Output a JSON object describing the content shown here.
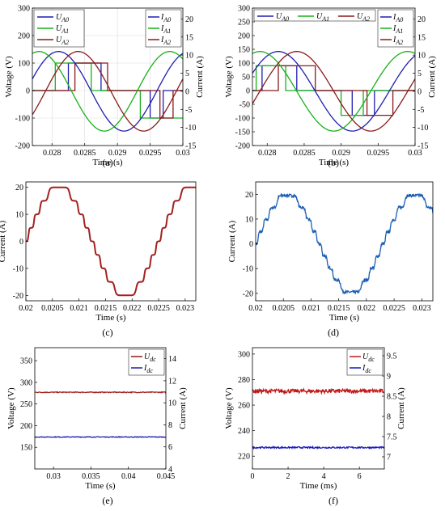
{
  "chart_data": [
    {
      "id": "a",
      "caption": "(a)",
      "type": "line",
      "xlabel": "Time (s)",
      "ylabel": "Voltage (V)",
      "y2label": "Current (A)",
      "xlim": [
        0.0277,
        0.03
      ],
      "ylim": [
        -200,
        300
      ],
      "y2lim": [
        -15,
        23
      ],
      "xticks": [
        "0.028",
        "0.0285",
        "0.029",
        "0.0295",
        "0.03"
      ],
      "yticks": [
        "-200",
        "-100",
        "0",
        "100",
        "200",
        "300"
      ],
      "y2ticks": [
        "-15",
        "-10",
        "-5",
        "0",
        "5",
        "10",
        "15",
        "20"
      ],
      "grid": true,
      "legend": {
        "left": [
          {
            "name": "U_A0",
            "color": "#1f1fb0"
          },
          {
            "name": "U_A1",
            "color": "#18b018"
          },
          {
            "name": "U_A2",
            "color": "#8b1a1a"
          }
        ],
        "right": [
          {
            "name": "I_A0",
            "color": "#1f1fb0"
          },
          {
            "name": "I_A1",
            "color": "#18b018"
          },
          {
            "name": "I_A2",
            "color": "#8b1a1a"
          }
        ]
      },
      "series": [
        {
          "name": "U_A0",
          "axis": "y",
          "kind": "step",
          "color": "#1f1fb0",
          "x": [
            0.0277,
            0.02825,
            0.02825,
            0.02875,
            0.02875,
            0.0295,
            0.0295,
            0.0297,
            0.0297,
            0.03
          ],
          "y": [
            0,
            0,
            100,
            100,
            0,
            0,
            -100,
            -100,
            0,
            0
          ]
        },
        {
          "name": "U_A1",
          "axis": "y",
          "kind": "step",
          "color": "#18b018",
          "x": [
            0.0277,
            0.02805,
            0.02805,
            0.0286,
            0.0286,
            0.02935,
            0.02935,
            0.03
          ],
          "y": [
            0,
            0,
            100,
            100,
            0,
            0,
            -100,
            -100
          ]
        },
        {
          "name": "U_A2",
          "axis": "y",
          "kind": "step",
          "color": "#8b1a1a",
          "x": [
            0.0277,
            0.02835,
            0.02835,
            0.02885,
            0.02885,
            0.02965,
            0.02965,
            0.02985,
            0.02985,
            0.03
          ],
          "y": [
            0,
            0,
            100,
            100,
            0,
            0,
            -100,
            -100,
            0,
            0
          ]
        },
        {
          "name": "I_A0",
          "axis": "y2",
          "kind": "sine",
          "color": "#1f1fb0",
          "amp": 11,
          "period": 0.002,
          "phase": 0.0276
        },
        {
          "name": "I_A1",
          "axis": "y2",
          "kind": "sine",
          "color": "#18b018",
          "amp": 11,
          "period": 0.002,
          "phase": 0.0273
        },
        {
          "name": "I_A2",
          "axis": "y2",
          "kind": "sine",
          "color": "#8b1a1a",
          "amp": 11,
          "period": 0.002,
          "phase": 0.0279
        }
      ]
    },
    {
      "id": "b",
      "caption": "(b)",
      "type": "line",
      "xlabel": "Time (s)",
      "ylabel": "Voltage (V)",
      "y2label": "Current (A)",
      "xlim": [
        0.0278,
        0.03
      ],
      "ylim": [
        -200,
        300
      ],
      "y2lim": [
        -15,
        23
      ],
      "xticks": [
        "0.028",
        "0.0285",
        "0.029",
        "0.0295",
        "0.03"
      ],
      "yticks": [
        "-200",
        "-150",
        "-100",
        "-50",
        "0",
        "50",
        "100",
        "150",
        "200",
        "250",
        "300"
      ],
      "y2ticks": [
        "-15",
        "-10",
        "-5",
        "0",
        "5",
        "10",
        "15",
        "20"
      ],
      "grid": false,
      "legend": {
        "left": [
          {
            "name": "U_A0",
            "color": "#1f1fb0"
          },
          {
            "name": "U_A1",
            "color": "#18b018"
          },
          {
            "name": "U_A2",
            "color": "#8b1a1a"
          }
        ],
        "right": [
          {
            "name": "I_A0",
            "color": "#1f1fb0"
          },
          {
            "name": "I_A1",
            "color": "#18b018"
          },
          {
            "name": "I_A2",
            "color": "#8b1a1a"
          }
        ]
      },
      "series": [
        {
          "name": "U_A0",
          "axis": "y",
          "kind": "step",
          "color": "#1f1fb0",
          "x": [
            0.0278,
            0.02793,
            0.02793,
            0.0284,
            0.0284,
            0.02915,
            0.02915,
            0.02945,
            0.02945,
            0.03
          ],
          "y": [
            0,
            0,
            90,
            90,
            0,
            0,
            -90,
            -90,
            0,
            0
          ]
        },
        {
          "name": "U_A1",
          "axis": "y",
          "kind": "step",
          "color": "#18b018",
          "x": [
            0.0278,
            0.02785,
            0.02785,
            0.02825,
            0.02825,
            0.029,
            0.029,
            0.0293,
            0.0293,
            0.03
          ],
          "y": [
            0,
            0,
            90,
            90,
            0,
            0,
            -90,
            -90,
            0,
            0
          ]
        },
        {
          "name": "U_A2",
          "axis": "y",
          "kind": "step",
          "color": "#8b1a1a",
          "x": [
            0.0278,
            0.02815,
            0.02815,
            0.02865,
            0.02865,
            0.02935,
            0.02935,
            0.0297,
            0.0297,
            0.03
          ],
          "y": [
            0,
            0,
            90,
            90,
            0,
            0,
            -90,
            -90,
            0,
            0
          ]
        },
        {
          "name": "I_A0",
          "axis": "y2",
          "kind": "sine",
          "color": "#1f1fb0",
          "amp": 11,
          "period": 0.002,
          "phase": 0.02765
        },
        {
          "name": "I_A1",
          "axis": "y2",
          "kind": "sine",
          "color": "#18b018",
          "amp": 11,
          "period": 0.002,
          "phase": 0.0274
        },
        {
          "name": "I_A2",
          "axis": "y2",
          "kind": "sine",
          "color": "#8b1a1a",
          "amp": 11,
          "period": 0.002,
          "phase": 0.0279
        }
      ]
    },
    {
      "id": "c",
      "caption": "(c)",
      "type": "line",
      "xlabel": "Time (s)",
      "ylabel": "Current (A)",
      "xlim": [
        0.02,
        0.0232
      ],
      "ylim": [
        -22,
        22
      ],
      "xticks": [
        "0.02",
        "0.0205",
        "0.021",
        "0.0215",
        "0.022",
        "0.0225",
        "0.023"
      ],
      "yticks": [
        "-20",
        "-10",
        "0",
        "10",
        "20"
      ],
      "series": [
        {
          "name": "",
          "kind": "staircase",
          "color": "#a32020",
          "amp": 20,
          "period": 0.0025,
          "phase": 0.02,
          "steps": 4,
          "noise": 0
        }
      ]
    },
    {
      "id": "d",
      "caption": "(d)",
      "type": "line",
      "xlabel": "Time (s)",
      "ylabel": "Current (A)",
      "xlim": [
        0.02,
        0.0232
      ],
      "ylim": [
        -23,
        25
      ],
      "xticks": [
        "0.02",
        "0.0205",
        "0.021",
        "0.0215",
        "0.022",
        "0.0225",
        "0.023"
      ],
      "yticks": [
        "-20",
        "-10",
        "0",
        "10",
        "20"
      ],
      "series": [
        {
          "name": "",
          "kind": "staircase",
          "color": "#1a5fb4",
          "amp": 19.5,
          "period": 0.0023,
          "phase": 0.02,
          "steps": 4,
          "noise": 0.6
        }
      ]
    },
    {
      "id": "e",
      "caption": "(e)",
      "type": "line",
      "xlabel": "Time (s)",
      "ylabel": "Voltage (V)",
      "y2label": "Current (A)",
      "xlim": [
        0.0275,
        0.045
      ],
      "ylim": [
        100,
        380
      ],
      "y2lim": [
        4,
        15
      ],
      "xticks": [
        "0.03",
        "0.035",
        "0.04",
        "0.045"
      ],
      "yticks": [
        "150",
        "200",
        "250",
        "300",
        "350"
      ],
      "y2ticks": [
        "4",
        "6",
        "8",
        "10",
        "12",
        "14"
      ],
      "legend": {
        "right": [
          {
            "name": "U_dc",
            "color": "#8b1a1a"
          },
          {
            "name": "I_dc",
            "color": "#1f1fb0"
          }
        ]
      },
      "series": [
        {
          "name": "U_dc",
          "axis": "y",
          "kind": "flat",
          "color": "#a32020",
          "value": 277,
          "noise": 1
        },
        {
          "name": "I_dc",
          "axis": "y2",
          "kind": "flat",
          "color": "#1f1fb0",
          "value": 6.9,
          "noise": 0.03
        }
      ]
    },
    {
      "id": "f",
      "caption": "(f)",
      "type": "line",
      "xlabel": "Time (ms)",
      "ylabel": "Voltage (V)",
      "y2label": "Current (A)",
      "xlim": [
        0,
        7.4
      ],
      "ylim": [
        210,
        305
      ],
      "y2lim": [
        6.7,
        9.7
      ],
      "xticks": [
        "0",
        "2",
        "4",
        "6"
      ],
      "yticks": [
        "220",
        "240",
        "260",
        "280",
        "300"
      ],
      "y2ticks": [
        "7",
        "7.5",
        "8",
        "8.5",
        "9",
        "9.5"
      ],
      "legend": {
        "right": [
          {
            "name": "U_dc",
            "color": "#c01818"
          },
          {
            "name": "I_dc",
            "color": "#1818c0"
          }
        ]
      },
      "series": [
        {
          "name": "U_dc",
          "axis": "y",
          "kind": "flat",
          "color": "#c01818",
          "value": 271,
          "noise": 1.6
        },
        {
          "name": "I_dc",
          "axis": "y2",
          "kind": "flat",
          "color": "#1818c0",
          "value": 7.23,
          "noise": 0.02
        }
      ]
    }
  ]
}
